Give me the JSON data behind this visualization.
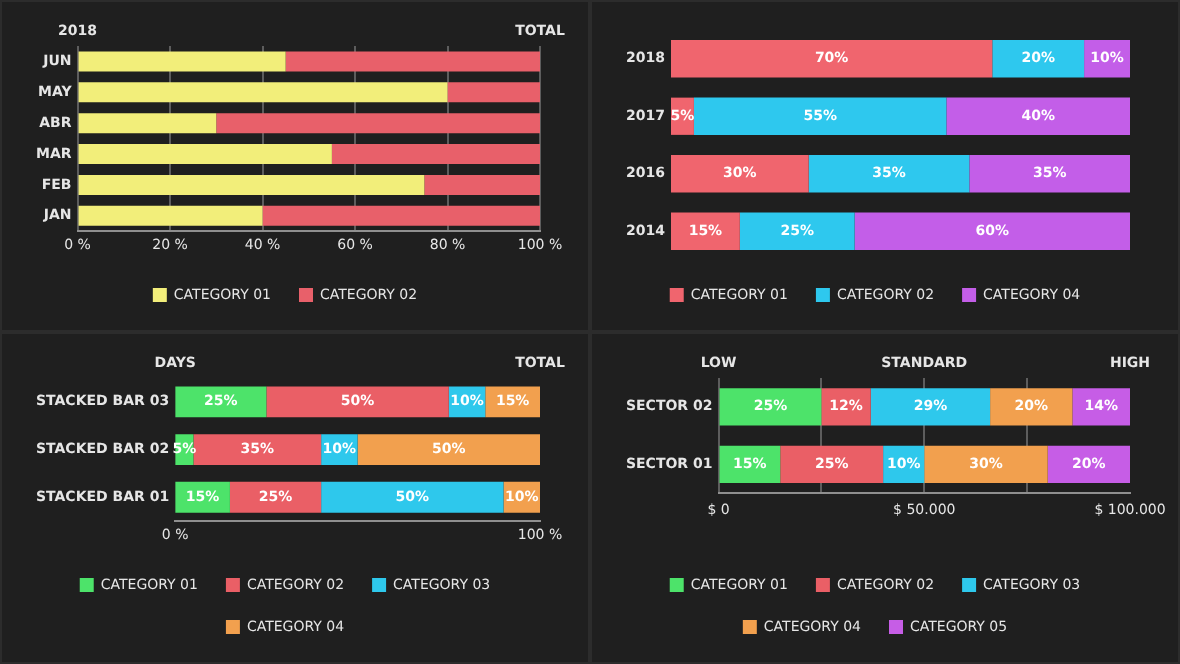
{
  "chart_data": [
    {
      "type": "bar",
      "orientation": "horizontal",
      "stacked": true,
      "categories": [
        "JUN",
        "MAY",
        "ABR",
        "MAR",
        "FEB",
        "JAN"
      ],
      "series": [
        {
          "name": "CATEGORY 01",
          "color": "#f2ee7a",
          "values": [
            45,
            80,
            30,
            55,
            75,
            40
          ]
        },
        {
          "name": "CATEGORY 02",
          "color": "#e8606a",
          "values": [
            55,
            20,
            70,
            45,
            25,
            60
          ]
        }
      ],
      "xlim": [
        0,
        100
      ],
      "xticks": [
        {
          "value": 0,
          "label": "0 %"
        },
        {
          "value": 20,
          "label": "20 %"
        },
        {
          "value": 40,
          "label": "40 %"
        },
        {
          "value": 60,
          "label": "60 %"
        },
        {
          "value": 80,
          "label": "80 %"
        },
        {
          "value": 100,
          "label": "100 %"
        }
      ],
      "annotations": [
        "2018",
        "TOTAL"
      ],
      "grid": "x",
      "legend": "bottom"
    },
    {
      "type": "bar",
      "orientation": "horizontal",
      "stacked": true,
      "categories": [
        "2018",
        "2017",
        "2016",
        "2014"
      ],
      "series": [
        {
          "name": "CATEGORY 01",
          "color": "#f0656e",
          "values": [
            70,
            5,
            30,
            15
          ],
          "value_labels": [
            "70%",
            "5%",
            "30%",
            "15%"
          ]
        },
        {
          "name": "CATEGORY 02",
          "color": "#2ec8ee",
          "values": [
            20,
            55,
            35,
            25
          ],
          "value_labels": [
            "20%",
            "55%",
            "35%",
            "25%"
          ]
        },
        {
          "name": "CATEGORY 04",
          "color": "#c35ee8",
          "values": [
            10,
            40,
            35,
            60
          ],
          "value_labels": [
            "10%",
            "40%",
            "35%",
            "60%"
          ]
        }
      ],
      "tick_labels": "y",
      "legend": "bottom"
    },
    {
      "type": "bar",
      "orientation": "horizontal",
      "stacked": true,
      "categories": [
        "STACKED BAR 03",
        "STACKED BAR 02",
        "STACKED BAR 01"
      ],
      "series": [
        {
          "name": "CATEGORY 01",
          "color": "#4de36a",
          "values": [
            25,
            5,
            15
          ],
          "value_labels": [
            "25%",
            "5%",
            "15%"
          ]
        },
        {
          "name": "CATEGORY 02",
          "color": "#ea5f66",
          "values": [
            50,
            35,
            25
          ],
          "value_labels": [
            "50%",
            "35%",
            "25%"
          ]
        },
        {
          "name": "CATEGORY 03",
          "color": "#2ec8ec",
          "values": [
            10,
            10,
            50
          ],
          "value_labels": [
            "10%",
            "10%",
            "50%"
          ]
        },
        {
          "name": "CATEGORY 04",
          "color": "#f2a04e",
          "values": [
            15,
            50,
            10
          ],
          "value_labels": [
            "15%",
            "50%",
            "10%"
          ]
        }
      ],
      "xlim": [
        0,
        100
      ],
      "xticks": [
        {
          "value": 0,
          "label": "0 %"
        },
        {
          "value": 100,
          "label": "100 %"
        }
      ],
      "annotations": [
        "DAYS",
        "TOTAL"
      ],
      "legend": "bottom"
    },
    {
      "type": "bar",
      "orientation": "horizontal",
      "stacked": true,
      "categories": [
        "SECTOR 02",
        "SECTOR 01"
      ],
      "series": [
        {
          "name": "CATEGORY 01",
          "color": "#4de36a",
          "values": [
            25,
            15
          ],
          "value_labels": [
            "25%",
            "15%"
          ]
        },
        {
          "name": "CATEGORY 02",
          "color": "#ea5f66",
          "values": [
            12,
            25
          ],
          "value_labels": [
            "12%",
            "25%"
          ]
        },
        {
          "name": "CATEGORY 03",
          "color": "#2ec8ec",
          "values": [
            29,
            10
          ],
          "value_labels": [
            "29%",
            "10%"
          ]
        },
        {
          "name": "CATEGORY 04",
          "color": "#f2a04e",
          "values": [
            20,
            30
          ],
          "value_labels": [
            "20%",
            "30%"
          ]
        },
        {
          "name": "CATEGORY 05",
          "color": "#c65de6",
          "values": [
            14,
            20
          ],
          "value_labels": [
            "14%",
            "20%"
          ]
        }
      ],
      "xlim": [
        0,
        100
      ],
      "xticks": [
        {
          "value": 0,
          "label": null
        },
        {
          "value": 25,
          "label": null
        },
        {
          "value": 50,
          "label": null
        },
        {
          "value": 75,
          "label": null
        }
      ],
      "annotations": [
        "LOW",
        "STANDARD",
        "HIGH",
        "$ 0",
        "$ 50.000",
        "$ 100.000"
      ],
      "grid": "x",
      "legend": "bottom"
    }
  ]
}
